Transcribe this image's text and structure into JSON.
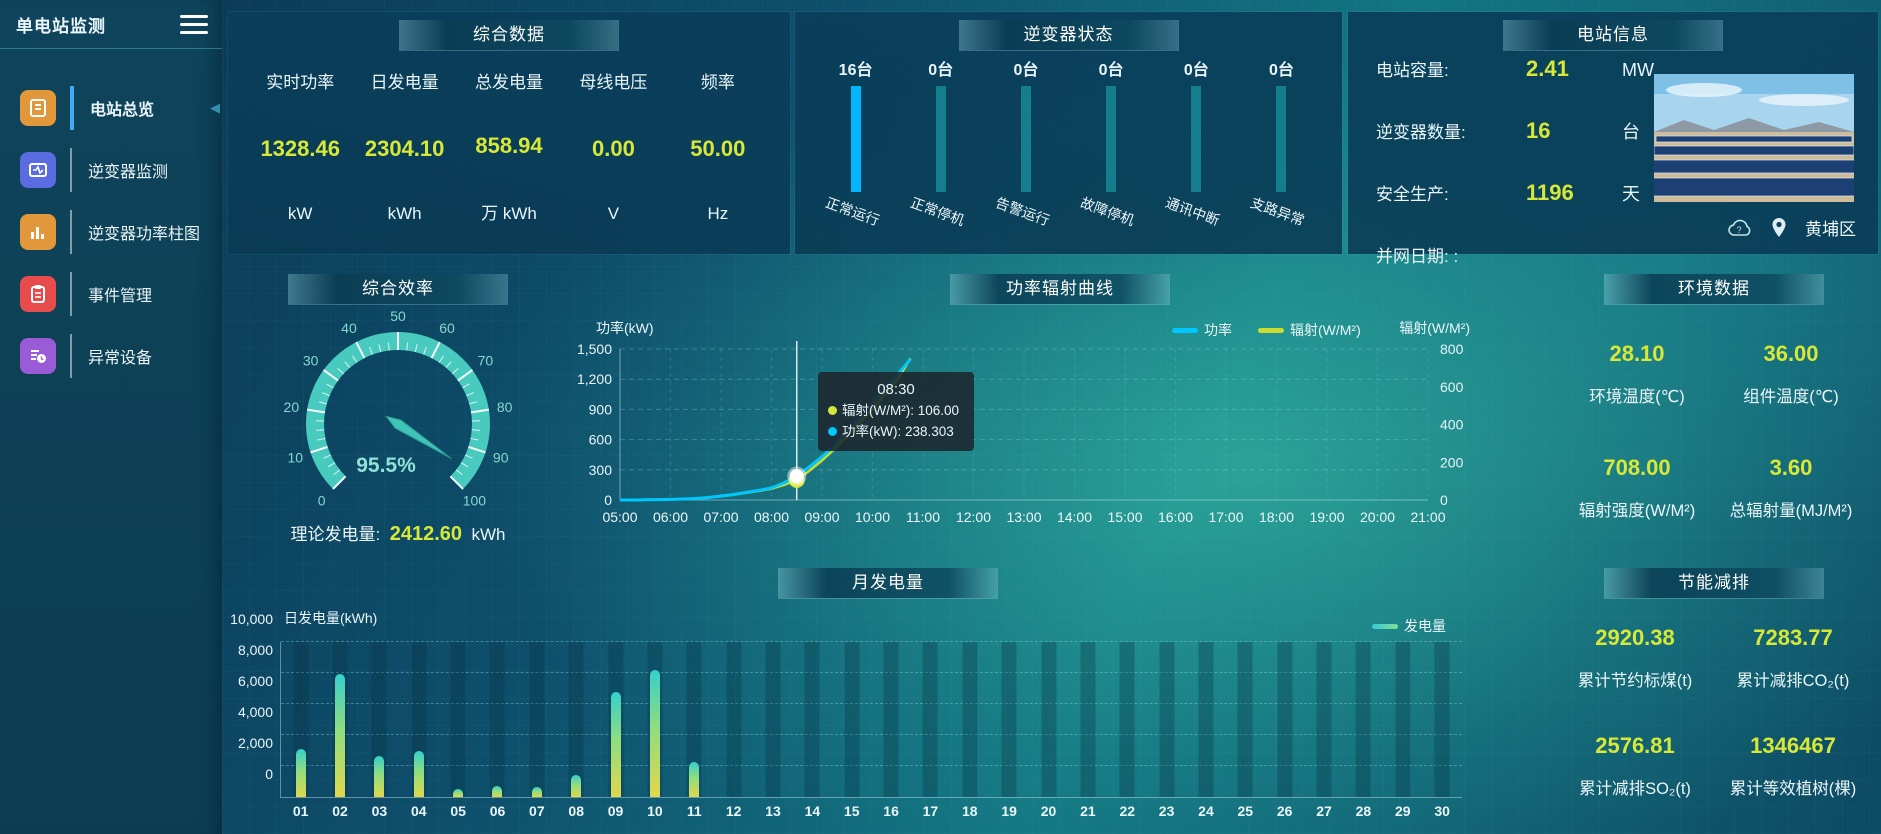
{
  "sidebar": {
    "title": "单电站监测",
    "items": [
      {
        "label": "电站总览",
        "color": "#e2973a",
        "active": true
      },
      {
        "label": "逆变器监测",
        "color": "#5b6be0",
        "active": false
      },
      {
        "label": "逆变器功率柱图",
        "color": "#e2973a",
        "active": false
      },
      {
        "label": "事件管理",
        "color": "#e84b4b",
        "active": false
      },
      {
        "label": "异常设备",
        "color": "#9a5bd6",
        "active": false
      }
    ]
  },
  "panels": {
    "summary": {
      "title": "综合数据",
      "metrics": [
        {
          "label": "实时功率",
          "value": "1328.46",
          "unit": "kW"
        },
        {
          "label": "日发电量",
          "value": "2304.10",
          "unit": "kWh"
        },
        {
          "label": "总发电量",
          "value": "858.94",
          "unit": "万 kWh"
        },
        {
          "label": "母线电压",
          "value": "0.00",
          "unit": "V"
        },
        {
          "label": "频率",
          "value": "50.00",
          "unit": "Hz"
        }
      ]
    },
    "inverter_status": {
      "title": "逆变器状态"
    },
    "station_info": {
      "title": "电站信息",
      "rows": [
        {
          "label": "电站容量:",
          "value": "2.41",
          "unit": "MW"
        },
        {
          "label": "逆变器数量:",
          "value": "16",
          "unit": "台"
        },
        {
          "label": "安全生产:",
          "value": "1196",
          "unit": "天"
        },
        {
          "label": "并网日期: :",
          "value": "",
          "unit": ""
        }
      ],
      "location": "黄埔区"
    },
    "efficiency": {
      "title": "综合效率",
      "value_display": "95.5%",
      "theory_label": "理论发电量:",
      "theory_value": "2412.60",
      "theory_unit": "kWh"
    },
    "environment": {
      "title": "环境数据",
      "metrics": [
        {
          "value": "28.10",
          "label": "环境温度(℃)"
        },
        {
          "value": "36.00",
          "label": "组件温度(℃)"
        },
        {
          "value": "708.00",
          "label": "辐射强度(W/M²)"
        },
        {
          "value": "3.60",
          "label": "总辐射量(MJ/M²)"
        }
      ]
    },
    "saving": {
      "title": "节能减排",
      "metrics": [
        {
          "value": "2920.38",
          "label": "累计节约标煤(t)"
        },
        {
          "value": "7283.77",
          "label": "累计减排CO₂(t)"
        },
        {
          "value": "2576.81",
          "label": "累计减排SO₂(t)"
        },
        {
          "value": "1346467",
          "label": "累计等效植树(棵)"
        }
      ]
    }
  },
  "chart_data": [
    {
      "type": "line",
      "title": "功率辐射曲线",
      "x_hours": [
        5,
        5.25,
        5.5,
        5.75,
        6,
        6.25,
        6.5,
        6.75,
        7,
        7.25,
        7.5,
        7.75,
        8,
        8.25,
        8.5,
        8.75,
        9,
        9.25,
        9.5,
        9.75,
        10,
        10.25,
        10.5,
        10.75
      ],
      "x_ticks": [
        "05:00",
        "06:00",
        "07:00",
        "08:00",
        "09:00",
        "10:00",
        "11:00",
        "12:00",
        "13:00",
        "14:00",
        "15:00",
        "16:00",
        "17:00",
        "18:00",
        "19:00",
        "20:00",
        "21:00"
      ],
      "series": [
        {
          "name": "功率",
          "color": "#00c6ff",
          "axis": "left",
          "values": [
            0,
            0,
            2,
            4,
            6,
            10,
            15,
            25,
            40,
            55,
            75,
            95,
            120,
            170,
            238.3,
            330,
            430,
            540,
            680,
            810,
            950,
            1100,
            1250,
            1400
          ]
        },
        {
          "name": "辐射(W/M²)",
          "color": "#ccdc2f",
          "axis": "right",
          "values": [
            0,
            0,
            1,
            2,
            3,
            5,
            8,
            13,
            20,
            28,
            38,
            48,
            60,
            80,
            106,
            155,
            210,
            270,
            340,
            410,
            480,
            560,
            640,
            750
          ]
        }
      ],
      "left_axis": {
        "name": "功率(kW)",
        "max": 1500,
        "ticks": [
          "0",
          "300",
          "600",
          "900",
          "1,200",
          "1,500"
        ]
      },
      "right_axis": {
        "name": "辐射(W/M²)",
        "max": 800,
        "ticks": [
          "0",
          "200",
          "400",
          "600",
          "800"
        ]
      },
      "tooltip": {
        "time": "08:30",
        "x_hour": 8.5,
        "items": [
          {
            "name": "辐射(W/M²)",
            "value": "106.00",
            "color": "#d6e53b"
          },
          {
            "name": "功率(kW)",
            "value": "238.303",
            "color": "#00c6ff"
          }
        ]
      },
      "grid": true,
      "legend_position": "top-center-right"
    },
    {
      "type": "bar",
      "title": "月发电量",
      "ylabel": "日发电量(kWh)",
      "legend": [
        "发电量"
      ],
      "categories": [
        "01",
        "02",
        "03",
        "04",
        "05",
        "06",
        "07",
        "08",
        "09",
        "10",
        "11",
        "12",
        "13",
        "14",
        "15",
        "16",
        "17",
        "18",
        "19",
        "20",
        "21",
        "22",
        "23",
        "24",
        "25",
        "26",
        "27",
        "28",
        "29",
        "30"
      ],
      "values": [
        3100,
        7950,
        2650,
        3000,
        500,
        700,
        620,
        1400,
        6800,
        8200,
        2250,
        0,
        0,
        0,
        0,
        0,
        0,
        0,
        0,
        0,
        0,
        0,
        0,
        0,
        0,
        0,
        0,
        0,
        0,
        0
      ],
      "y_ticks": [
        "0",
        "2,000",
        "4,000",
        "6,000",
        "8,000",
        "10,000"
      ],
      "ylim": [
        0,
        10000
      ],
      "grid": true,
      "legend_position": "top-right"
    },
    {
      "type": "gauge",
      "title": "综合效率",
      "value": 95.5,
      "min": 0,
      "max": 100,
      "tick_labels": [
        0,
        10,
        20,
        30,
        40,
        50,
        60,
        70,
        80,
        90,
        100
      ],
      "color": "#49cabe"
    },
    {
      "type": "bar",
      "title": "逆变器状态",
      "categories": [
        "正常运行",
        "正常停机",
        "告警运行",
        "故障停机",
        "通讯中断",
        "支路异常"
      ],
      "values": [
        16,
        0,
        0,
        0,
        0,
        0
      ],
      "counts": [
        "16台",
        "0台",
        "0台",
        "0台",
        "0台",
        "0台"
      ],
      "max": 16,
      "fill_color": "#00b6ff",
      "track_color": "#157e8d"
    }
  ]
}
